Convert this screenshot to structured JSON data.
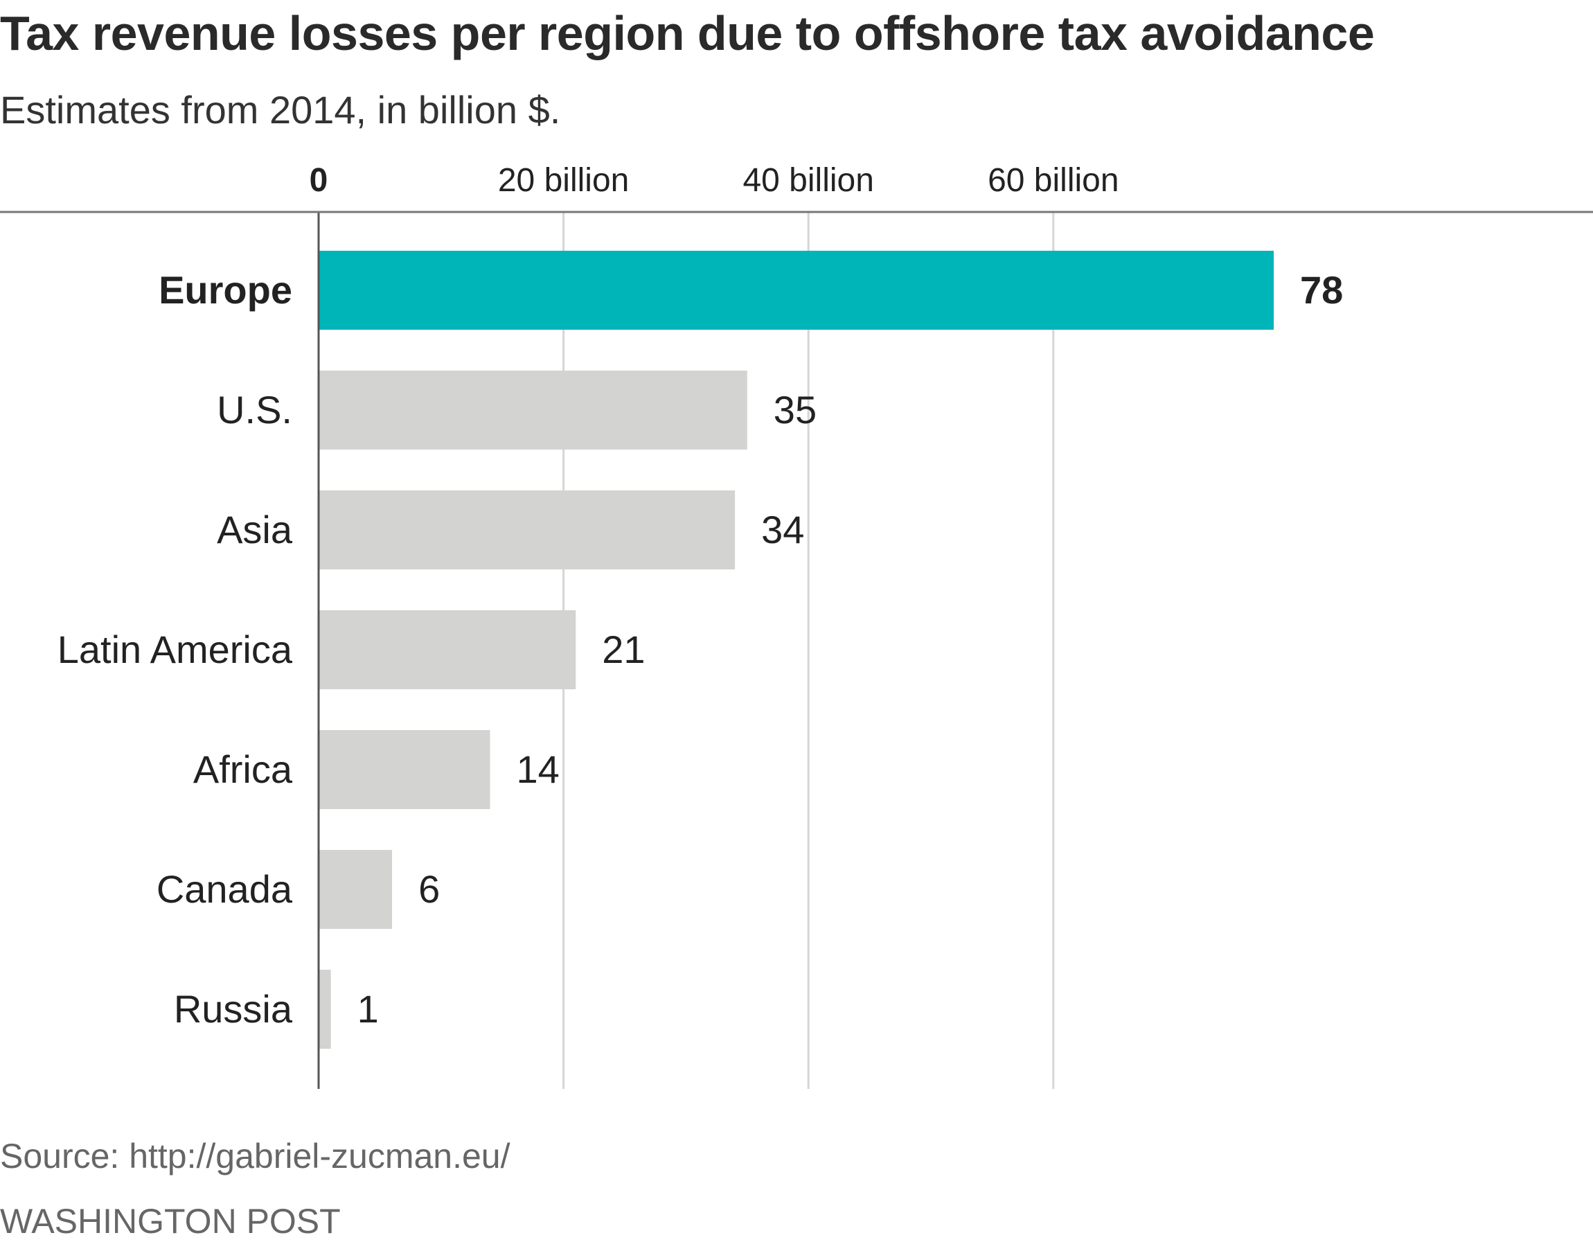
{
  "header": {
    "title": "Tax revenue losses per region due to offshore tax avoidance",
    "subtitle": "Estimates from 2014, in billion $."
  },
  "footer": {
    "source": "Source: http://gabriel-zucman.eu/",
    "credit": "WASHINGTON POST"
  },
  "colors": {
    "highlight": "#00b5b8",
    "bar": "#d3d3d1",
    "gridline": "#d6d6d6",
    "axis": "#555555",
    "text": "#222222"
  },
  "chart_data": {
    "type": "bar",
    "orientation": "horizontal",
    "title": "Tax revenue losses per region due to offshore tax avoidance",
    "subtitle": "Estimates from 2014, in billion $.",
    "categories": [
      "Europe",
      "U.S.",
      "Asia",
      "Latin America",
      "Africa",
      "Canada",
      "Russia"
    ],
    "values": [
      78,
      35,
      34,
      21,
      14,
      6,
      1
    ],
    "highlight": "Europe",
    "xlim": [
      0,
      80
    ],
    "ticks": [
      {
        "value": 0,
        "label": "0"
      },
      {
        "value": 20,
        "label": "20 billion"
      },
      {
        "value": 40,
        "label": "40 billion"
      },
      {
        "value": 60,
        "label": "60 billion"
      }
    ],
    "axis_position": "top",
    "grid": true,
    "legend": "none"
  }
}
